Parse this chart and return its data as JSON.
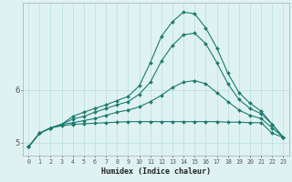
{
  "xlabel": "Humidex (Indice chaleur)",
  "bg_color": "#dff2f2",
  "grid_color": "#b8dede",
  "line_color": "#1c7a6e",
  "x_values": [
    0,
    1,
    2,
    3,
    4,
    5,
    6,
    7,
    8,
    9,
    10,
    11,
    12,
    13,
    14,
    15,
    16,
    17,
    18,
    19,
    20,
    21,
    22,
    23
  ],
  "line1": [
    4.92,
    5.18,
    5.28,
    5.32,
    5.35,
    5.36,
    5.37,
    5.38,
    5.39,
    5.4,
    5.4,
    5.4,
    5.4,
    5.4,
    5.4,
    5.4,
    5.4,
    5.4,
    5.39,
    5.39,
    5.38,
    5.38,
    5.18,
    5.1
  ],
  "line2": [
    4.92,
    5.18,
    5.28,
    5.35,
    5.38,
    5.42,
    5.46,
    5.52,
    5.58,
    5.62,
    5.68,
    5.78,
    5.9,
    6.05,
    6.15,
    6.18,
    6.12,
    5.95,
    5.78,
    5.62,
    5.52,
    5.46,
    5.28,
    5.1
  ],
  "line3": [
    4.92,
    5.18,
    5.28,
    5.35,
    5.45,
    5.5,
    5.58,
    5.65,
    5.72,
    5.78,
    5.92,
    6.15,
    6.55,
    6.85,
    7.05,
    7.08,
    6.88,
    6.52,
    6.12,
    5.82,
    5.65,
    5.55,
    5.35,
    5.1
  ],
  "line4": [
    4.92,
    5.18,
    5.28,
    5.35,
    5.5,
    5.58,
    5.65,
    5.72,
    5.8,
    5.88,
    6.08,
    6.52,
    7.02,
    7.3,
    7.48,
    7.45,
    7.18,
    6.8,
    6.32,
    5.95,
    5.75,
    5.6,
    5.35,
    5.1
  ],
  "ylim": [
    4.75,
    7.65
  ],
  "xlim": [
    -0.5,
    23.5
  ],
  "yticks": [
    5,
    6
  ],
  "xticks": [
    0,
    1,
    2,
    3,
    4,
    5,
    6,
    7,
    8,
    9,
    10,
    11,
    12,
    13,
    14,
    15,
    16,
    17,
    18,
    19,
    20,
    21,
    22,
    23
  ]
}
